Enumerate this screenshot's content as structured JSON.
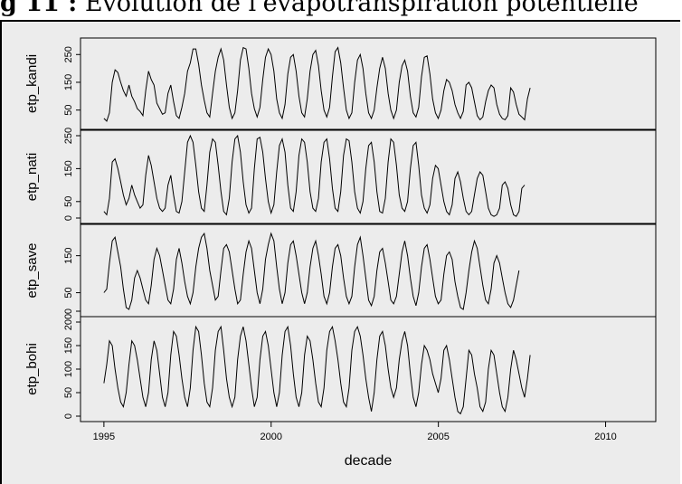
{
  "caption": {
    "prefix": "g 11 :",
    "text": "Evolution de l'évapotranspiration potentielle"
  },
  "chart_data": {
    "type": "line",
    "xlabel": "decade",
    "x_ticks": [
      1995,
      2000,
      2005,
      2010
    ],
    "xlim": [
      1994.3,
      2011.5
    ],
    "x_start": 1995.0,
    "x_end": 2011.0,
    "step": 0.0833,
    "panels": [
      {
        "name": "etp_kandi",
        "ylim": [
          0,
          290
        ],
        "y_ticks": [
          50,
          150,
          250
        ],
        "values": [
          20,
          10,
          40,
          150,
          195,
          185,
          150,
          120,
          100,
          140,
          100,
          80,
          55,
          45,
          30,
          120,
          190,
          160,
          140,
          75,
          55,
          35,
          40,
          110,
          140,
          80,
          30,
          20,
          60,
          110,
          190,
          220,
          270,
          270,
          215,
          140,
          85,
          40,
          25,
          110,
          190,
          240,
          270,
          230,
          140,
          60,
          20,
          40,
          120,
          230,
          275,
          270,
          200,
          110,
          55,
          25,
          60,
          160,
          240,
          270,
          250,
          190,
          90,
          40,
          20,
          70,
          180,
          240,
          250,
          190,
          100,
          40,
          25,
          90,
          190,
          250,
          265,
          210,
          120,
          50,
          25,
          60,
          170,
          260,
          275,
          220,
          130,
          50,
          20,
          40,
          150,
          230,
          250,
          200,
          110,
          40,
          20,
          50,
          130,
          200,
          240,
          200,
          110,
          50,
          20,
          50,
          150,
          210,
          230,
          190,
          100,
          40,
          25,
          60,
          170,
          240,
          245,
          180,
          90,
          40,
          20,
          50,
          120,
          160,
          150,
          120,
          70,
          40,
          20,
          45,
          140,
          150,
          130,
          80,
          30,
          15,
          25,
          80,
          120,
          140,
          130,
          70,
          35,
          20,
          15,
          30,
          130,
          115,
          70,
          35,
          25,
          15,
          90,
          130
        ]
      },
      {
        "name": "etp_nati",
        "ylim": [
          0,
          250
        ],
        "y_ticks": [
          0,
          50,
          150,
          250
        ],
        "values": [
          20,
          10,
          60,
          170,
          180,
          150,
          110,
          70,
          40,
          60,
          100,
          70,
          50,
          30,
          40,
          130,
          190,
          160,
          110,
          60,
          30,
          20,
          30,
          100,
          130,
          70,
          20,
          15,
          50,
          140,
          230,
          250,
          230,
          160,
          80,
          30,
          20,
          100,
          200,
          240,
          230,
          160,
          80,
          20,
          10,
          60,
          170,
          240,
          250,
          200,
          110,
          40,
          15,
          30,
          150,
          240,
          245,
          200,
          120,
          50,
          15,
          40,
          140,
          220,
          240,
          200,
          100,
          30,
          20,
          80,
          190,
          240,
          230,
          170,
          80,
          30,
          20,
          60,
          170,
          230,
          240,
          180,
          90,
          30,
          20,
          80,
          190,
          240,
          235,
          170,
          80,
          30,
          15,
          50,
          150,
          220,
          230,
          170,
          80,
          20,
          15,
          60,
          170,
          240,
          230,
          160,
          70,
          30,
          20,
          50,
          150,
          220,
          230,
          160,
          70,
          30,
          15,
          40,
          120,
          160,
          150,
          100,
          50,
          20,
          10,
          40,
          120,
          140,
          110,
          60,
          20,
          10,
          20,
          70,
          120,
          140,
          130,
          80,
          30,
          10,
          5,
          10,
          30,
          100,
          110,
          90,
          40,
          10,
          5,
          20,
          90,
          100
        ]
      },
      {
        "name": "etp_save",
        "ylim": [
          0,
          220
        ],
        "y_ticks": [
          0,
          50,
          150
        ],
        "values": [
          50,
          60,
          130,
          190,
          200,
          160,
          120,
          60,
          10,
          5,
          30,
          90,
          110,
          90,
          60,
          30,
          20,
          70,
          140,
          170,
          150,
          110,
          70,
          30,
          20,
          60,
          140,
          170,
          130,
          80,
          40,
          20,
          50,
          120,
          170,
          200,
          210,
          170,
          110,
          70,
          30,
          40,
          110,
          170,
          180,
          160,
          110,
          60,
          20,
          30,
          100,
          160,
          190,
          170,
          110,
          50,
          20,
          60,
          140,
          180,
          210,
          190,
          120,
          60,
          20,
          50,
          130,
          180,
          190,
          150,
          100,
          50,
          20,
          50,
          120,
          170,
          190,
          150,
          100,
          40,
          20,
          50,
          120,
          170,
          180,
          150,
          90,
          40,
          20,
          40,
          120,
          180,
          200,
          150,
          90,
          30,
          15,
          40,
          110,
          160,
          170,
          130,
          80,
          30,
          20,
          40,
          100,
          160,
          190,
          150,
          90,
          40,
          15,
          50,
          120,
          170,
          180,
          140,
          90,
          40,
          20,
          30,
          100,
          150,
          160,
          140,
          80,
          40,
          10,
          5,
          50,
          110,
          160,
          190,
          170,
          120,
          70,
          30,
          20,
          60,
          130,
          150,
          130,
          90,
          50,
          20,
          10,
          30,
          70,
          110
        ]
      },
      {
        "name": "etp_bohi",
        "ylim": [
          0,
          200
        ],
        "y_ticks": [
          0,
          50,
          100,
          150,
          200
        ],
        "values": [
          70,
          110,
          160,
          150,
          100,
          60,
          30,
          20,
          50,
          110,
          160,
          150,
          120,
          80,
          40,
          20,
          50,
          120,
          160,
          140,
          90,
          40,
          20,
          50,
          130,
          180,
          170,
          130,
          80,
          40,
          20,
          60,
          140,
          190,
          180,
          130,
          70,
          30,
          20,
          60,
          140,
          180,
          190,
          140,
          80,
          40,
          20,
          40,
          120,
          170,
          190,
          160,
          110,
          60,
          20,
          40,
          120,
          170,
          180,
          150,
          100,
          50,
          20,
          50,
          130,
          180,
          190,
          150,
          90,
          40,
          20,
          50,
          130,
          170,
          160,
          120,
          70,
          30,
          20,
          60,
          140,
          180,
          190,
          160,
          120,
          70,
          30,
          20,
          60,
          140,
          180,
          190,
          170,
          130,
          80,
          40,
          10,
          50,
          120,
          170,
          180,
          150,
          100,
          60,
          40,
          60,
          120,
          160,
          180,
          150,
          90,
          40,
          20,
          50,
          110,
          150,
          140,
          120,
          90,
          70,
          50,
          80,
          140,
          150,
          120,
          80,
          40,
          10,
          5,
          20,
          80,
          140,
          130,
          90,
          60,
          20,
          10,
          30,
          100,
          140,
          130,
          90,
          50,
          20,
          10,
          40,
          100,
          140,
          120,
          90,
          60,
          40,
          80,
          130
        ]
      }
    ]
  }
}
